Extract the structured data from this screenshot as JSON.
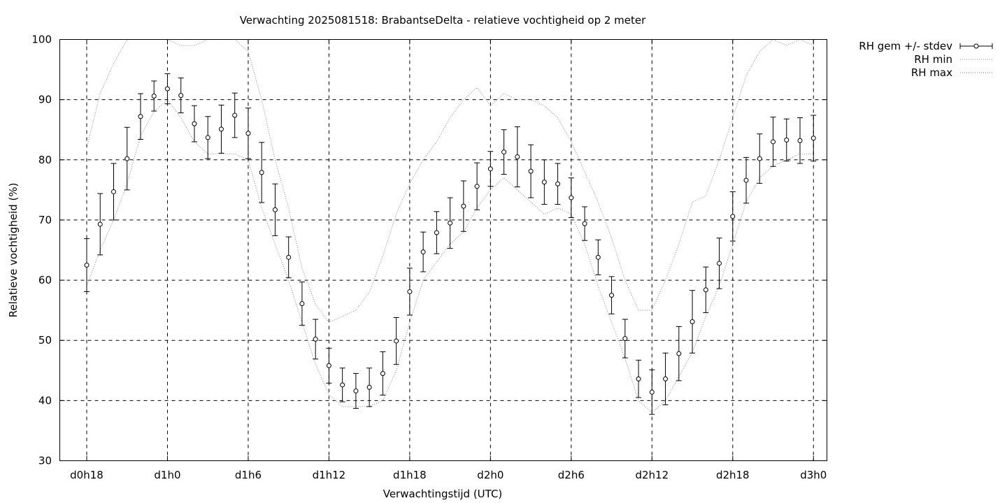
{
  "chart_data": {
    "type": "scatter",
    "title": "Verwachting 2025081518: BrabantseDelta - relatieve vochtigheid op 2 meter",
    "xlabel": "Verwachtingstijd (UTC)",
    "ylabel": "Relatieve vochtigheid (%)",
    "xlim": [
      -2,
      55
    ],
    "ylim": [
      30,
      100
    ],
    "yticks": [
      30,
      40,
      50,
      60,
      70,
      80,
      90,
      100
    ],
    "xticks": [
      {
        "x": 0,
        "label": "d0h18"
      },
      {
        "x": 6,
        "label": "d1h0"
      },
      {
        "x": 12,
        "label": "d1h6"
      },
      {
        "x": 18,
        "label": "d1h12"
      },
      {
        "x": 24,
        "label": "d1h18"
      },
      {
        "x": 30,
        "label": "d2h0"
      },
      {
        "x": 36,
        "label": "d2h6"
      },
      {
        "x": 42,
        "label": "d2h12"
      },
      {
        "x": 48,
        "label": "d2h18"
      },
      {
        "x": 54,
        "label": "d3h0"
      }
    ],
    "grid": true,
    "legend_position": "top-right-outside",
    "series": [
      {
        "name": "RH gem +/- stdev",
        "style": "points-errorbars",
        "x": [
          0,
          1,
          2,
          3,
          4,
          5,
          6,
          7,
          8,
          9,
          10,
          11,
          12,
          13,
          14,
          15,
          16,
          17,
          18,
          19,
          20,
          21,
          22,
          23,
          24,
          25,
          26,
          27,
          28,
          29,
          30,
          31,
          32,
          33,
          34,
          35,
          36,
          37,
          38,
          39,
          40,
          41,
          42,
          43,
          44,
          45,
          46,
          47,
          48,
          49,
          50,
          51,
          52,
          53,
          54
        ],
        "mean": [
          62.5,
          69.3,
          74.7,
          80.2,
          87.2,
          90.6,
          91.8,
          90.7,
          86.0,
          83.7,
          85.1,
          87.4,
          84.4,
          77.9,
          71.7,
          63.8,
          56.1,
          50.2,
          45.8,
          42.6,
          41.6,
          42.2,
          44.5,
          49.9,
          58.1,
          64.7,
          67.9,
          69.5,
          72.3,
          75.6,
          78.5,
          81.3,
          80.5,
          78.1,
          76.3,
          76.0,
          73.7,
          69.4,
          63.8,
          57.5,
          50.3,
          43.6,
          41.4,
          43.6,
          47.8,
          53.1,
          58.4,
          62.8,
          70.6,
          76.6,
          80.2,
          83.0,
          83.3,
          83.2,
          83.6
        ],
        "stdev": [
          4.4,
          5.1,
          4.7,
          5.2,
          3.8,
          2.5,
          2.5,
          2.9,
          3.0,
          3.5,
          4.0,
          3.7,
          4.2,
          5.0,
          4.3,
          3.4,
          3.6,
          3.3,
          2.9,
          2.8,
          2.9,
          3.2,
          3.6,
          3.9,
          3.9,
          3.3,
          3.5,
          4.2,
          4.2,
          3.9,
          2.9,
          3.7,
          5.0,
          4.4,
          3.7,
          3.4,
          3.3,
          2.8,
          2.9,
          3.1,
          3.2,
          3.1,
          3.7,
          4.3,
          4.5,
          5.2,
          3.8,
          4.2,
          4.1,
          3.8,
          4.1,
          4.1,
          3.5,
          3.8,
          3.8
        ]
      },
      {
        "name": "RH min",
        "style": "dotted-line",
        "x": [
          0,
          1,
          2,
          3,
          4,
          5,
          6,
          7,
          8,
          9,
          10,
          11,
          12,
          13,
          14,
          15,
          16,
          17,
          18,
          19,
          20,
          21,
          22,
          23,
          24,
          25,
          26,
          27,
          28,
          29,
          30,
          31,
          32,
          33,
          34,
          35,
          36,
          37,
          38,
          39,
          40,
          41,
          42,
          43,
          44,
          45,
          46,
          47,
          48,
          49,
          50,
          51,
          52,
          53,
          54
        ],
        "values": [
          59,
          65,
          70,
          76,
          84,
          88,
          90,
          87,
          83,
          81,
          81,
          81,
          80,
          72,
          66,
          60,
          53,
          46,
          41,
          39,
          39,
          39,
          40,
          45,
          53,
          60,
          63,
          66,
          68,
          72,
          75,
          77,
          75,
          73,
          71,
          72,
          71,
          66,
          59,
          53,
          47,
          40,
          38,
          40,
          44,
          48,
          54,
          59,
          66,
          73,
          77,
          79,
          80,
          81,
          81
        ]
      },
      {
        "name": "RH max",
        "style": "dotted-line",
        "x": [
          0,
          1,
          2,
          3,
          4,
          5,
          6,
          7,
          8,
          9,
          10,
          11,
          12,
          13,
          14,
          15,
          16,
          17,
          18,
          19,
          20,
          21,
          22,
          23,
          24,
          25,
          26,
          27,
          28,
          29,
          30,
          31,
          32,
          33,
          34,
          35,
          36,
          37,
          38,
          39,
          40,
          41,
          42,
          43,
          44,
          45,
          46,
          47,
          48,
          49,
          50,
          51,
          52,
          53,
          54
        ],
        "values": [
          82,
          91,
          96,
          100,
          100,
          100,
          100,
          99,
          99,
          100,
          100,
          100,
          98,
          90,
          80,
          72,
          62,
          56,
          53,
          54,
          55,
          58,
          64,
          71,
          76,
          80,
          83,
          87,
          90,
          92,
          89,
          91,
          90,
          90,
          89,
          87,
          83,
          78,
          73,
          67,
          60,
          55,
          55,
          60,
          66,
          73,
          74,
          80,
          87,
          94,
          98,
          100,
          99,
          100,
          99
        ]
      }
    ]
  }
}
